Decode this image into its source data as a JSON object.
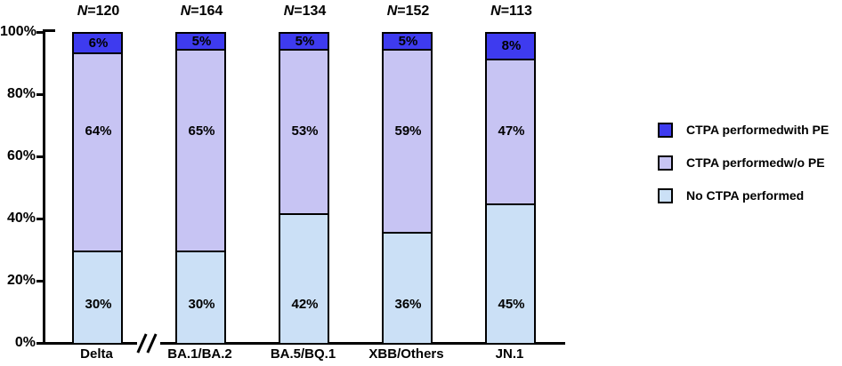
{
  "chart_data": {
    "type": "bar",
    "stacked": true,
    "title": "",
    "xlabel": "",
    "ylabel": "",
    "categories": [
      "Delta",
      "BA.1/BA.2",
      "BA.5/BQ.1",
      "XBB/Others",
      "JN.1"
    ],
    "n_labels": [
      "N=120",
      "N=164",
      "N=134",
      "N=152",
      "N=113"
    ],
    "series": [
      {
        "name": "No CTPA performed",
        "color": "#CBE0F6",
        "values": [
          30,
          30,
          42,
          36,
          45
        ]
      },
      {
        "name": "CTPA performedw/o PE",
        "color": "#C7C4F3",
        "values": [
          64,
          65,
          53,
          59,
          47
        ]
      },
      {
        "name": "CTPA performedwith PE",
        "color": "#3E3BEF",
        "values": [
          6,
          5,
          5,
          5,
          8
        ]
      }
    ],
    "value_suffix": "%",
    "ylim": [
      0,
      100
    ],
    "y_ticks": [
      "0%",
      "20%",
      "40%",
      "60%",
      "80%",
      "100%"
    ],
    "grid": false,
    "axis_break_after_first_category": true,
    "legend_position": "right",
    "legend": [
      {
        "label": "CTPA performedwith PE",
        "color": "#3E3BEF"
      },
      {
        "label": "CTPA performedw/o PE",
        "color": "#C7C4F3"
      },
      {
        "label": "No CTPA performed",
        "color": "#CBE0F6"
      }
    ]
  }
}
